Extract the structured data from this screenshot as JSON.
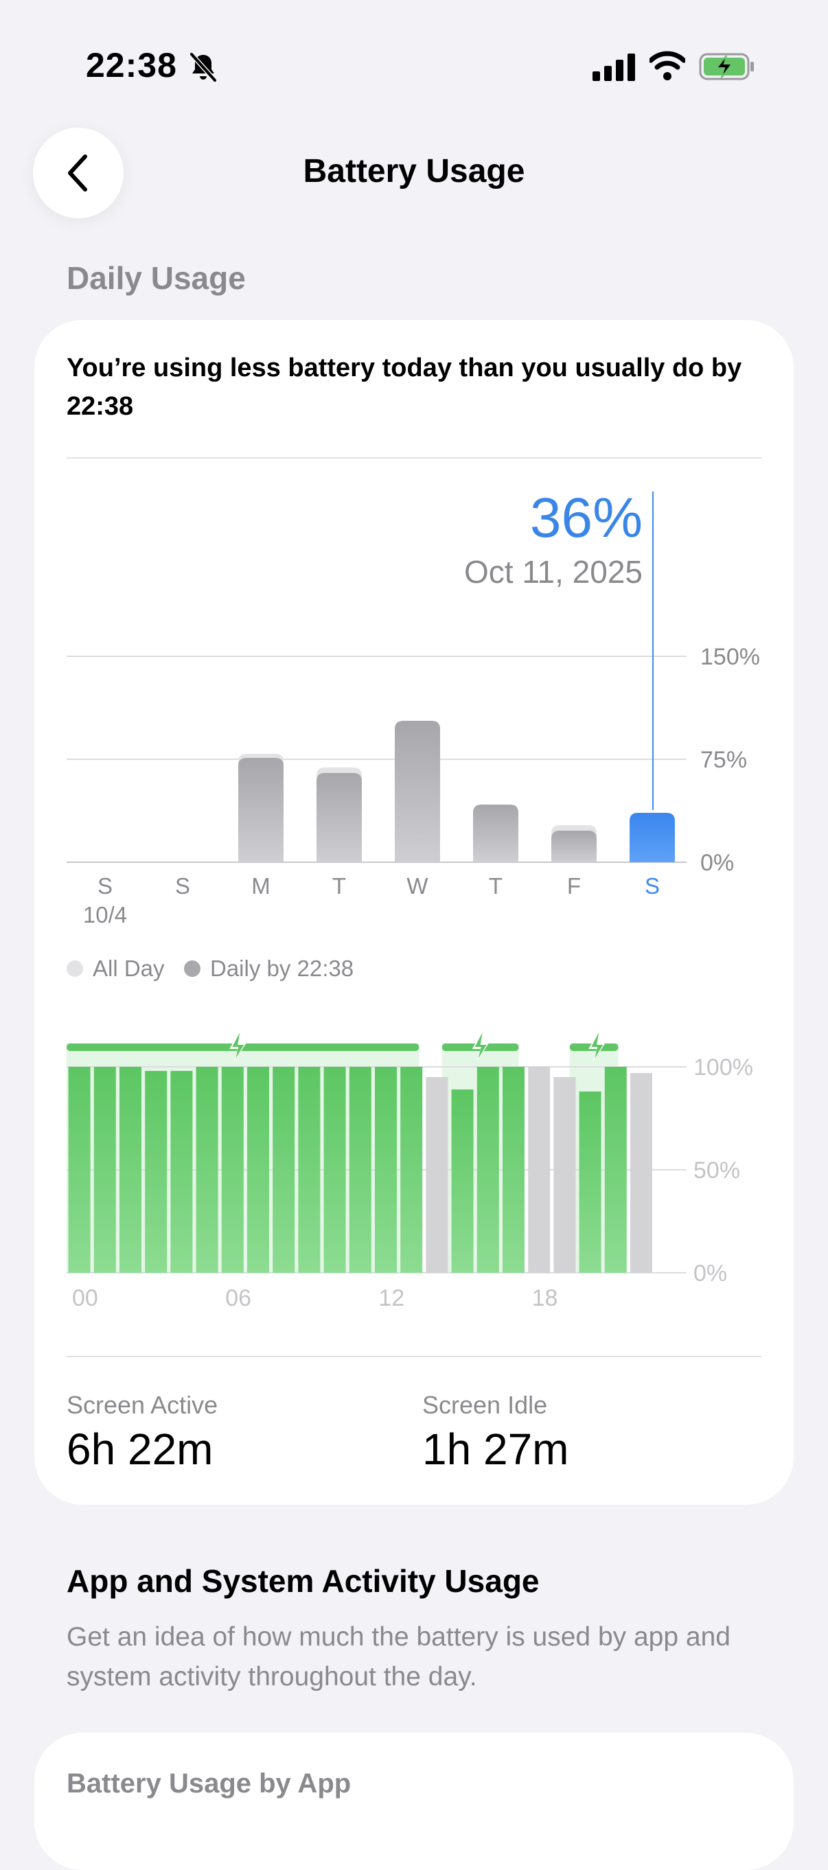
{
  "status_bar": {
    "time": "22:38"
  },
  "nav": {
    "title": "Battery Usage"
  },
  "daily": {
    "section_label": "Daily Usage",
    "summary": "You’re using less battery today than you usually do by 22:38",
    "selected_pct": "36%",
    "selected_date": "Oct 11, 2025",
    "legend": [
      {
        "label": "All Day",
        "color": "#e3e3e6"
      },
      {
        "label": "Daily by 22:38",
        "color": "#a8a8ad"
      }
    ]
  },
  "chart_data": [
    {
      "type": "bar",
      "title": "",
      "categories": [
        "S",
        "S",
        "M",
        "T",
        "W",
        "T",
        "F",
        "S"
      ],
      "first_category_sublabel": "10/4",
      "yticks": [
        "150%",
        "75%",
        "0%"
      ],
      "ylim": [
        0,
        150
      ],
      "series": [
        {
          "name": "All Day",
          "values": [
            0,
            0,
            79,
            69,
            0,
            0,
            27,
            0
          ]
        },
        {
          "name": "Daily by 22:38",
          "values": [
            0,
            0,
            76,
            65,
            103,
            42,
            23,
            36
          ]
        }
      ],
      "selected_index": 7,
      "colors": {
        "all_day": "#e3e3e6",
        "by_time": "#a8a8ad",
        "selected": "#3d8bf0"
      }
    },
    {
      "type": "bar",
      "title": "",
      "xticks": [
        "00",
        "06",
        "12",
        "18"
      ],
      "yticks": [
        "100%",
        "50%",
        "0%"
      ],
      "ylim": [
        0,
        100
      ],
      "hours": [
        0,
        1,
        2,
        3,
        4,
        5,
        6,
        7,
        8,
        9,
        10,
        11,
        12,
        13,
        14,
        15,
        16,
        17,
        18,
        19,
        20,
        21,
        22
      ],
      "values": [
        100,
        100,
        100,
        98,
        98,
        100,
        100,
        100,
        100,
        100,
        100,
        100,
        100,
        100,
        95,
        89,
        100,
        100,
        100,
        95,
        88,
        100,
        97
      ],
      "charging": [
        true,
        true,
        true,
        true,
        true,
        true,
        true,
        true,
        true,
        true,
        true,
        true,
        true,
        true,
        false,
        true,
        true,
        true,
        false,
        false,
        true,
        true,
        false
      ],
      "charging_segments": [
        [
          0,
          13.8
        ],
        [
          14.7,
          17.7
        ],
        [
          19.7,
          21.6
        ]
      ],
      "colors": {
        "charging": "#6dcf72",
        "not_charging": "#d3d3d6",
        "charge_strip": "#5fc565"
      }
    }
  ],
  "stats": {
    "screen_active_label": "Screen Active",
    "screen_active_value": "6h 22m",
    "screen_idle_label": "Screen Idle",
    "screen_idle_value": "1h 27m"
  },
  "app_activity": {
    "title": "App and System Activity Usage",
    "description": "Get an idea of how much the battery is used by app and system activity throughout the day.",
    "card_title": "Battery Usage by App"
  }
}
